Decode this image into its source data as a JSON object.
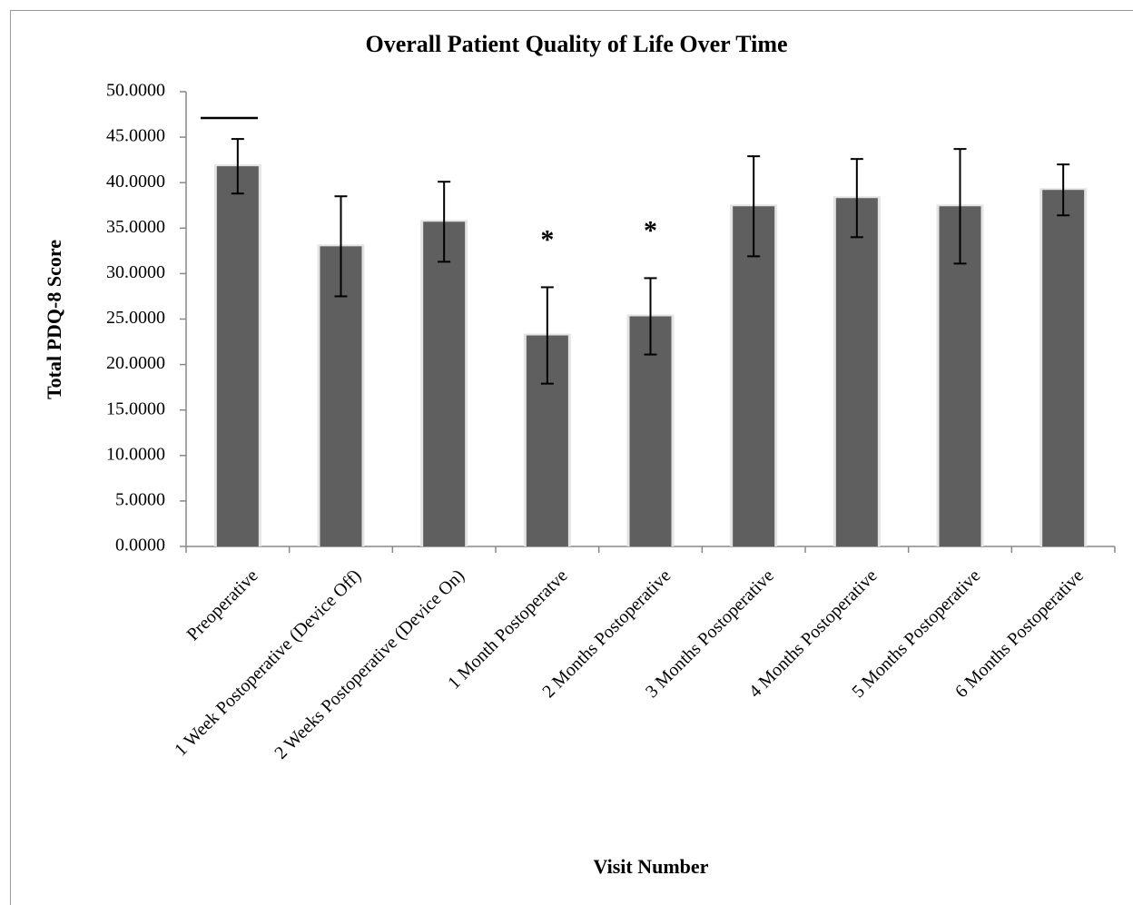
{
  "chart_data": {
    "type": "bar",
    "title": "Overall Patient Quality of Life Over Time",
    "x_label": "Visit Number",
    "y_label": "Total PDQ-8 Score",
    "categories": [
      "Preoperative",
      "1 Week Postoperative (Device Off)",
      "2 Weeks Postoperative (Device On)",
      "1 Month Postoperatve",
      "2 Months Postoperative",
      "3 Months Postoperative",
      "4 Months Postoperative",
      "5 Months Postoperative",
      "6 Months Postoperative"
    ],
    "values": [
      41.8,
      33.0,
      35.7,
      23.2,
      25.3,
      37.4,
      38.3,
      37.4,
      39.2
    ],
    "errors": [
      3.0,
      5.5,
      4.4,
      5.3,
      4.2,
      5.5,
      4.3,
      6.3,
      2.8
    ],
    "color": "#5f5f5f",
    "ylim": [
      0,
      50
    ],
    "yticks": [
      {
        "value": 0,
        "label": "0.0000"
      },
      {
        "value": 5,
        "label": "5.0000"
      },
      {
        "value": 10,
        "label": "10.0000"
      },
      {
        "value": 15,
        "label": "15.0000"
      },
      {
        "value": 20,
        "label": "20.0000"
      },
      {
        "value": 25,
        "label": "25.0000"
      },
      {
        "value": 30,
        "label": "30.0000"
      },
      {
        "value": 35,
        "label": "35.0000"
      },
      {
        "value": 40,
        "label": "40.0000"
      },
      {
        "value": 45,
        "label": "45.0000"
      },
      {
        "value": 50,
        "label": "50.0000"
      }
    ],
    "annotations": [
      {
        "text": "*",
        "category": "1 Month Postoperatve"
      },
      {
        "text": "*",
        "category": "2 Months Postoperative"
      }
    ],
    "grid": false
  }
}
